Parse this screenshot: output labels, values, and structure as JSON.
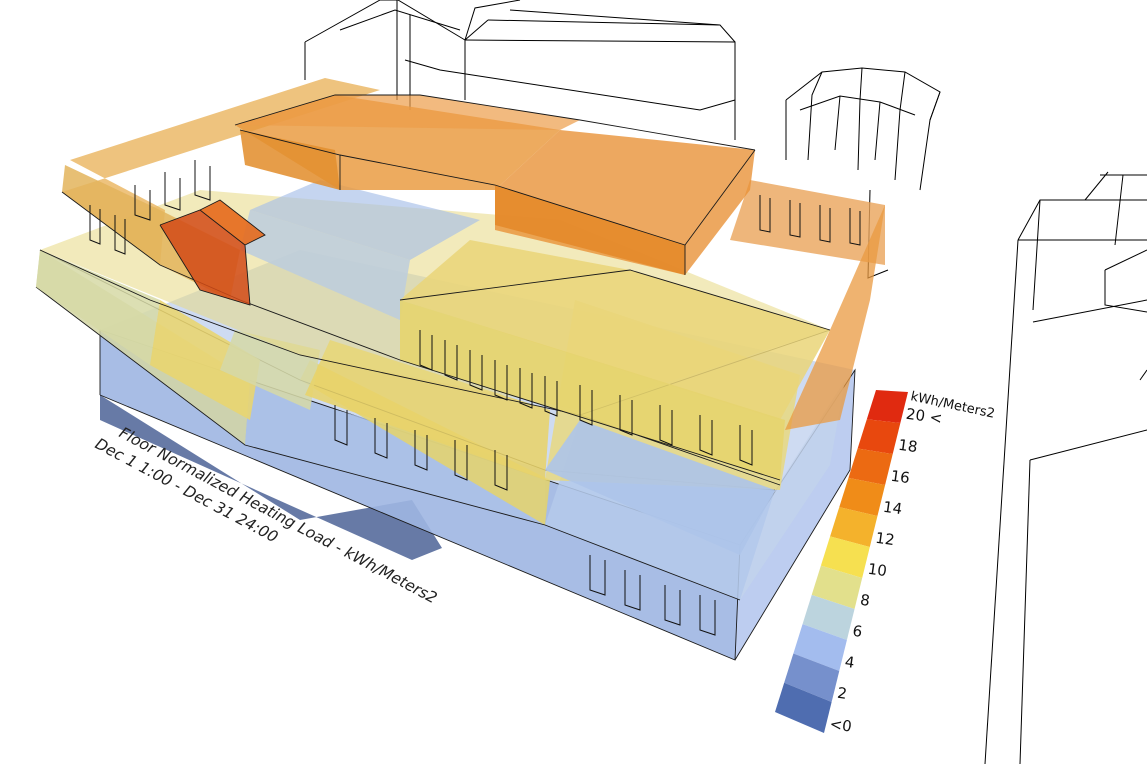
{
  "caption": {
    "line1": "Floor Normalized Heating Load  - kWh/Meters2",
    "line2": "Dec 1 1:00 - Dec 31 24:00"
  },
  "legend": {
    "unit": "kWh/Meters2",
    "labels": [
      "20 <",
      "18",
      "16",
      "14",
      "12",
      "10",
      "8",
      "6",
      "4",
      "2",
      "<0"
    ],
    "colors": [
      "#e02a10",
      "#e8480e",
      "#ec6a12",
      "#f08c18",
      "#f4b22c",
      "#f6e050",
      "#e2e08c",
      "#bcd4de",
      "#a3bcee",
      "#7690cc",
      "#4f6db0"
    ]
  },
  "colors": {
    "orange": "#e8902a",
    "light_orange": "#eab14a",
    "yellow": "#e8d468",
    "pale_yellow": "#d8d898",
    "light_blue": "#a9c2e8",
    "grey_blue": "#b2c6d6",
    "blue": "#8da6d6",
    "red": "#d24a16"
  }
}
